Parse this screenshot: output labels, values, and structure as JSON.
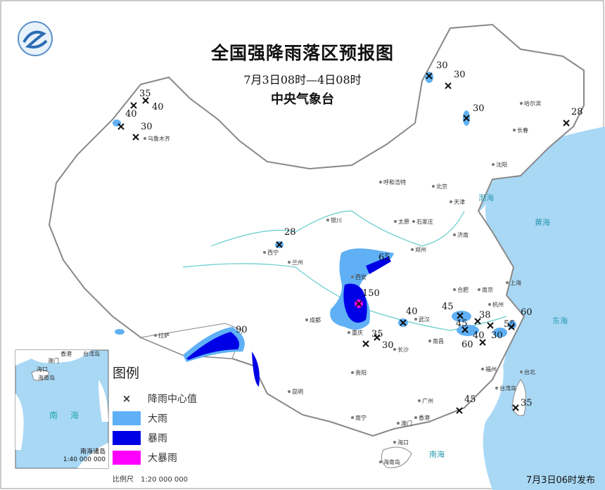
{
  "header": {
    "title": "全国强降雨落区预报图",
    "period": "7月3日08时—4日08时",
    "issuer": "中央气象台",
    "logo": "cma-logo"
  },
  "legend": {
    "title": "图例",
    "items": [
      {
        "label": "降雨中心值",
        "symbol": "×"
      },
      {
        "label": "大雨",
        "color": "#5fb0f5"
      },
      {
        "label": "暴雨",
        "color": "#0000e6"
      },
      {
        "label": "大暴雨",
        "color": "#ff00ff"
      }
    ],
    "scale": "比例尺　1:20 000 000"
  },
  "inset": {
    "sea_label": [
      "南",
      "海"
    ],
    "places": [
      "香港",
      "台湾岛",
      "澳门",
      "海口",
      "海南岛"
    ],
    "caption": "南海诸岛",
    "scale": "1:40 000 000"
  },
  "rain_centers": [
    "35",
    "40",
    "40",
    "30",
    "30",
    "30",
    "30",
    "28",
    "28",
    "65",
    "150",
    "90",
    "40",
    "35",
    "30",
    "45",
    "45",
    "38",
    "40",
    "60",
    "30",
    "55",
    "60",
    "45",
    "35"
  ],
  "cities": [
    "乌鲁木齐",
    "哈尔滨",
    "长春",
    "沈阳",
    "呼和浩特",
    "北京",
    "天津",
    "银川",
    "太原",
    "石家庄",
    "济南",
    "西宁",
    "兰州",
    "西安",
    "郑州",
    "合肥",
    "南京",
    "上海",
    "杭州",
    "武汉",
    "成都",
    "重庆",
    "长沙",
    "南昌",
    "福州",
    "贵阳",
    "昆明",
    "南宁",
    "广州",
    "台北",
    "拉萨",
    "香港",
    "澳门",
    "海口",
    "海南岛",
    "台湾岛"
  ],
  "seas": [
    "渤海",
    "黄海",
    "东海",
    "南海"
  ],
  "colors": {
    "sea": "#a9d8f5",
    "heavy_rain": "#5fb0f5",
    "rainstorm": "#0000e6",
    "heavy_rainstorm": "#ff00ff"
  },
  "footer": {
    "issued": "7月3日06时发布"
  }
}
